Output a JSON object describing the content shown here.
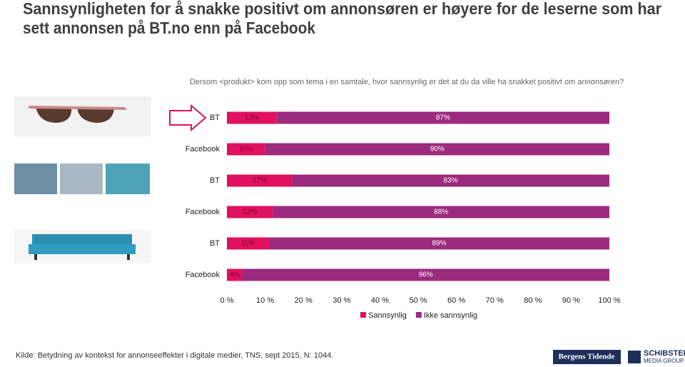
{
  "chart_data": {
    "type": "bar",
    "orientation": "horizontal",
    "stacked": true,
    "title": "Sannsynligheten for å snakke positivt om annonsøren er høyere for de leserne som har sett annonsen på BT.no enn på Facebook",
    "title_lines": [
      "Sannsynligheten for å snakke positivt om annonsøren er høyere for de leserne som har",
      "sett annonsen på BT.no enn på Facebook"
    ],
    "subtitle": "Dersom <produkt> kom opp som tema i en samtale, hvor sannsynlig er det at du da ville ha snakket positivt om annonsøren?",
    "categories": [
      "BT",
      "Facebook",
      "BT",
      "Facebook",
      "BT",
      "Facebook"
    ],
    "series": [
      {
        "name": "Sannsynlig",
        "color": "#e0115f",
        "values": [
          13,
          10,
          17,
          12,
          11,
          4
        ],
        "value_labels": [
          "13%",
          "10%",
          "17%",
          "12%",
          "11%",
          "4%"
        ]
      },
      {
        "name": "Ikke sannsynlig",
        "color": "#9c2a7d",
        "values": [
          87,
          90,
          83,
          88,
          89,
          96
        ],
        "value_labels": [
          "87%",
          "90%",
          "83%",
          "88%",
          "89%",
          "96%"
        ]
      }
    ],
    "xlim": [
      0,
      100
    ],
    "xticks": [
      {
        "value": 0,
        "label": "0 %"
      },
      {
        "value": 10,
        "label": "10 %"
      },
      {
        "value": 20,
        "label": "20 %"
      },
      {
        "value": 30,
        "label": "30 %"
      },
      {
        "value": 40,
        "label": "40 %"
      },
      {
        "value": 50,
        "label": "50 %"
      },
      {
        "value": 60,
        "label": "60 %"
      },
      {
        "value": 70,
        "label": "70 %"
      },
      {
        "value": 80,
        "label": "80 %"
      },
      {
        "value": 90,
        "label": "90 %"
      },
      {
        "value": 100,
        "label": "100 %"
      }
    ],
    "legend": "bottom",
    "source": "Kilde: Betydning av kontekst for annonseeffekter i digitale medier,  TNS, sept 2015, N: 1044."
  },
  "logos": {
    "left": "Bergens Tidende",
    "right_main": "SCHIBSTED",
    "right_sub": "MEDIA GROUP"
  }
}
